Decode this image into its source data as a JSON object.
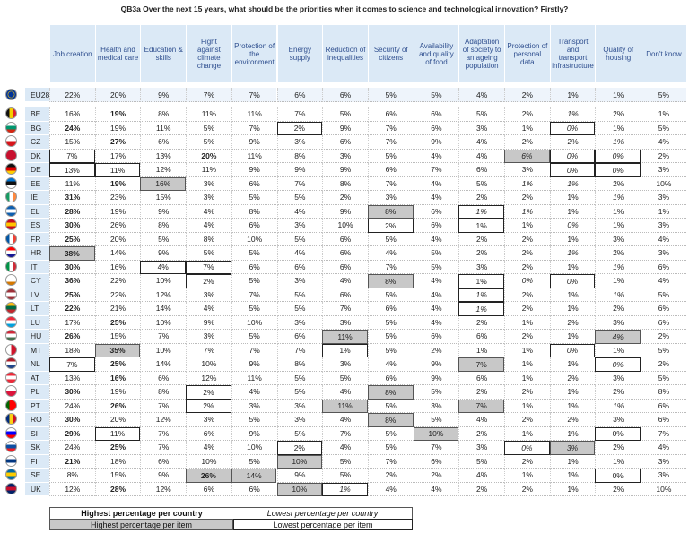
{
  "title": "QB3a Over the next 15 years, what should be the priorities when it comes to science and technological innovation? Firstly?",
  "table": {
    "columns": [
      "Job creation",
      "Health and medical care",
      "Education & skills",
      "Fight against climate change",
      "Protection of the environment",
      "Energy supply",
      "Reduction of inequalities",
      "Security of citizens",
      "Availability and quality of food",
      "Adaptation of society to an ageing population",
      "Protection of personal data",
      "Transport and transport infrastructure",
      "Quality of housing",
      "Don't know"
    ],
    "rows": [
      {
        "code": "EU28",
        "cells": [
          "22%",
          "20%",
          "9%",
          "7%",
          "7%",
          "6%",
          "6%",
          "5%",
          "5%",
          "4%",
          "2%",
          "1%",
          "1%",
          "5%"
        ]
      },
      {
        "code": "BE",
        "cells": [
          "16%",
          "19%",
          "8%",
          "11%",
          "11%",
          "7%",
          "5%",
          "6%",
          "6%",
          "5%",
          "2%",
          "1%",
          "2%",
          "1%"
        ]
      },
      {
        "code": "BG",
        "cells": [
          "24%",
          "19%",
          "11%",
          "5%",
          "7%",
          "2%",
          "9%",
          "7%",
          "6%",
          "3%",
          "1%",
          "0%",
          "1%",
          "5%"
        ]
      },
      {
        "code": "CZ",
        "cells": [
          "15%",
          "27%",
          "6%",
          "5%",
          "9%",
          "3%",
          "6%",
          "7%",
          "9%",
          "4%",
          "2%",
          "2%",
          "1%",
          "4%"
        ]
      },
      {
        "code": "DK",
        "cells": [
          "7%",
          "17%",
          "13%",
          "20%",
          "11%",
          "8%",
          "3%",
          "5%",
          "4%",
          "4%",
          "6%",
          "0%",
          "0%",
          "2%"
        ]
      },
      {
        "code": "DE",
        "cells": [
          "13%",
          "11%",
          "12%",
          "11%",
          "9%",
          "9%",
          "9%",
          "6%",
          "7%",
          "6%",
          "3%",
          "0%",
          "0%",
          "3%"
        ]
      },
      {
        "code": "EE",
        "cells": [
          "11%",
          "19%",
          "16%",
          "3%",
          "6%",
          "7%",
          "8%",
          "7%",
          "4%",
          "5%",
          "1%",
          "1%",
          "2%",
          "10%"
        ]
      },
      {
        "code": "IE",
        "cells": [
          "31%",
          "23%",
          "15%",
          "3%",
          "5%",
          "5%",
          "2%",
          "3%",
          "4%",
          "2%",
          "2%",
          "1%",
          "1%",
          "3%"
        ]
      },
      {
        "code": "EL",
        "cells": [
          "28%",
          "19%",
          "9%",
          "4%",
          "8%",
          "4%",
          "9%",
          "8%",
          "6%",
          "1%",
          "1%",
          "1%",
          "1%",
          "1%"
        ]
      },
      {
        "code": "ES",
        "cells": [
          "30%",
          "26%",
          "8%",
          "4%",
          "6%",
          "3%",
          "10%",
          "2%",
          "6%",
          "1%",
          "1%",
          "0%",
          "1%",
          "3%"
        ]
      },
      {
        "code": "FR",
        "cells": [
          "25%",
          "20%",
          "5%",
          "8%",
          "10%",
          "5%",
          "6%",
          "5%",
          "4%",
          "2%",
          "2%",
          "1%",
          "3%",
          "4%"
        ]
      },
      {
        "code": "HR",
        "cells": [
          "38%",
          "14%",
          "9%",
          "5%",
          "5%",
          "4%",
          "6%",
          "4%",
          "5%",
          "2%",
          "2%",
          "1%",
          "2%",
          "3%"
        ]
      },
      {
        "code": "IT",
        "cells": [
          "30%",
          "16%",
          "4%",
          "7%",
          "6%",
          "6%",
          "6%",
          "7%",
          "5%",
          "3%",
          "2%",
          "1%",
          "1%",
          "6%"
        ]
      },
      {
        "code": "CY",
        "cells": [
          "36%",
          "22%",
          "10%",
          "2%",
          "5%",
          "3%",
          "4%",
          "8%",
          "4%",
          "1%",
          "0%",
          "0%",
          "1%",
          "4%"
        ]
      },
      {
        "code": "LV",
        "cells": [
          "25%",
          "22%",
          "12%",
          "3%",
          "7%",
          "5%",
          "6%",
          "5%",
          "4%",
          "1%",
          "2%",
          "1%",
          "1%",
          "5%"
        ]
      },
      {
        "code": "LT",
        "cells": [
          "22%",
          "21%",
          "14%",
          "4%",
          "5%",
          "5%",
          "7%",
          "6%",
          "4%",
          "1%",
          "2%",
          "1%",
          "2%",
          "6%"
        ]
      },
      {
        "code": "LU",
        "cells": [
          "17%",
          "25%",
          "10%",
          "9%",
          "10%",
          "3%",
          "3%",
          "5%",
          "4%",
          "2%",
          "1%",
          "2%",
          "3%",
          "6%"
        ]
      },
      {
        "code": "HU",
        "cells": [
          "26%",
          "15%",
          "7%",
          "3%",
          "5%",
          "6%",
          "11%",
          "5%",
          "6%",
          "6%",
          "2%",
          "1%",
          "4%",
          "2%"
        ]
      },
      {
        "code": "MT",
        "cells": [
          "18%",
          "35%",
          "10%",
          "7%",
          "7%",
          "7%",
          "1%",
          "5%",
          "2%",
          "1%",
          "1%",
          "0%",
          "1%",
          "5%"
        ]
      },
      {
        "code": "NL",
        "cells": [
          "7%",
          "25%",
          "14%",
          "10%",
          "9%",
          "8%",
          "3%",
          "4%",
          "9%",
          "7%",
          "1%",
          "1%",
          "0%",
          "2%"
        ]
      },
      {
        "code": "AT",
        "cells": [
          "13%",
          "16%",
          "6%",
          "12%",
          "11%",
          "5%",
          "5%",
          "6%",
          "9%",
          "6%",
          "1%",
          "2%",
          "3%",
          "5%"
        ]
      },
      {
        "code": "PL",
        "cells": [
          "30%",
          "19%",
          "8%",
          "2%",
          "4%",
          "5%",
          "4%",
          "8%",
          "5%",
          "2%",
          "2%",
          "1%",
          "2%",
          "8%"
        ]
      },
      {
        "code": "PT",
        "cells": [
          "24%",
          "26%",
          "7%",
          "2%",
          "3%",
          "3%",
          "11%",
          "5%",
          "3%",
          "7%",
          "1%",
          "1%",
          "1%",
          "6%"
        ]
      },
      {
        "code": "RO",
        "cells": [
          "30%",
          "20%",
          "12%",
          "3%",
          "5%",
          "3%",
          "4%",
          "8%",
          "5%",
          "4%",
          "2%",
          "2%",
          "3%",
          "6%"
        ]
      },
      {
        "code": "SI",
        "cells": [
          "29%",
          "11%",
          "7%",
          "6%",
          "9%",
          "5%",
          "7%",
          "5%",
          "10%",
          "2%",
          "1%",
          "1%",
          "0%",
          "7%"
        ]
      },
      {
        "code": "SK",
        "cells": [
          "24%",
          "25%",
          "7%",
          "4%",
          "10%",
          "2%",
          "4%",
          "5%",
          "7%",
          "3%",
          "0%",
          "3%",
          "2%",
          "4%"
        ]
      },
      {
        "code": "FI",
        "cells": [
          "21%",
          "18%",
          "6%",
          "10%",
          "5%",
          "10%",
          "5%",
          "7%",
          "6%",
          "5%",
          "2%",
          "1%",
          "1%",
          "3%"
        ]
      },
      {
        "code": "SE",
        "cells": [
          "8%",
          "15%",
          "9%",
          "26%",
          "14%",
          "9%",
          "5%",
          "2%",
          "2%",
          "4%",
          "1%",
          "1%",
          "0%",
          "3%"
        ]
      },
      {
        "code": "UK",
        "cells": [
          "12%",
          "28%",
          "12%",
          "6%",
          "6%",
          "10%",
          "1%",
          "4%",
          "4%",
          "2%",
          "2%",
          "1%",
          "2%",
          "10%"
        ]
      }
    ]
  },
  "legend": {
    "highest_country": "Highest percentage per country",
    "lowest_country": "Lowest percentage per country",
    "highest_item": "Highest percentage per item",
    "lowest_item": "Lowest percentage per item"
  }
}
